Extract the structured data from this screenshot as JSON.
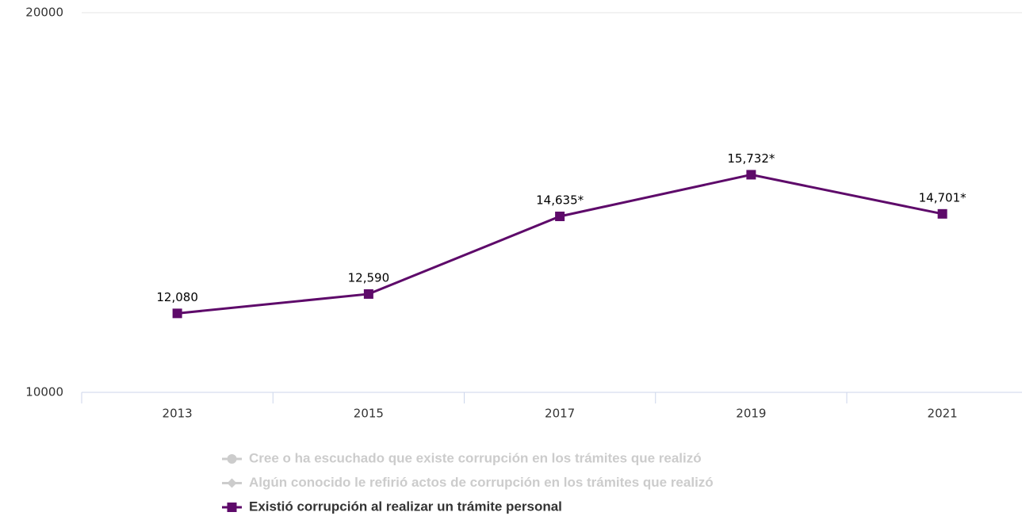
{
  "chart_data": {
    "type": "line",
    "categories": [
      "2013",
      "2015",
      "2017",
      "2019",
      "2021"
    ],
    "series": [
      {
        "name": "Cree o ha escuchado que existe corrupción en los trámites que realizó",
        "color": "#cccccc",
        "marker": "circle",
        "visible": false
      },
      {
        "name": "Algún conocido le refirió actos de corrupción en los trámites que realizó",
        "color": "#cccccc",
        "marker": "diamond",
        "visible": false
      },
      {
        "name": "Existió corrupción al realizar un trámite personal",
        "color": "#5e0a6a",
        "marker": "square",
        "visible": true,
        "values": [
          12080,
          12590,
          14635,
          15732,
          14701
        ],
        "value_labels": [
          "12,080",
          "12,590",
          "14,635*",
          "15,732*",
          "14,701*"
        ]
      }
    ],
    "ylim": [
      10000,
      20000
    ],
    "yticks": [
      10000,
      20000
    ],
    "grid": true
  }
}
